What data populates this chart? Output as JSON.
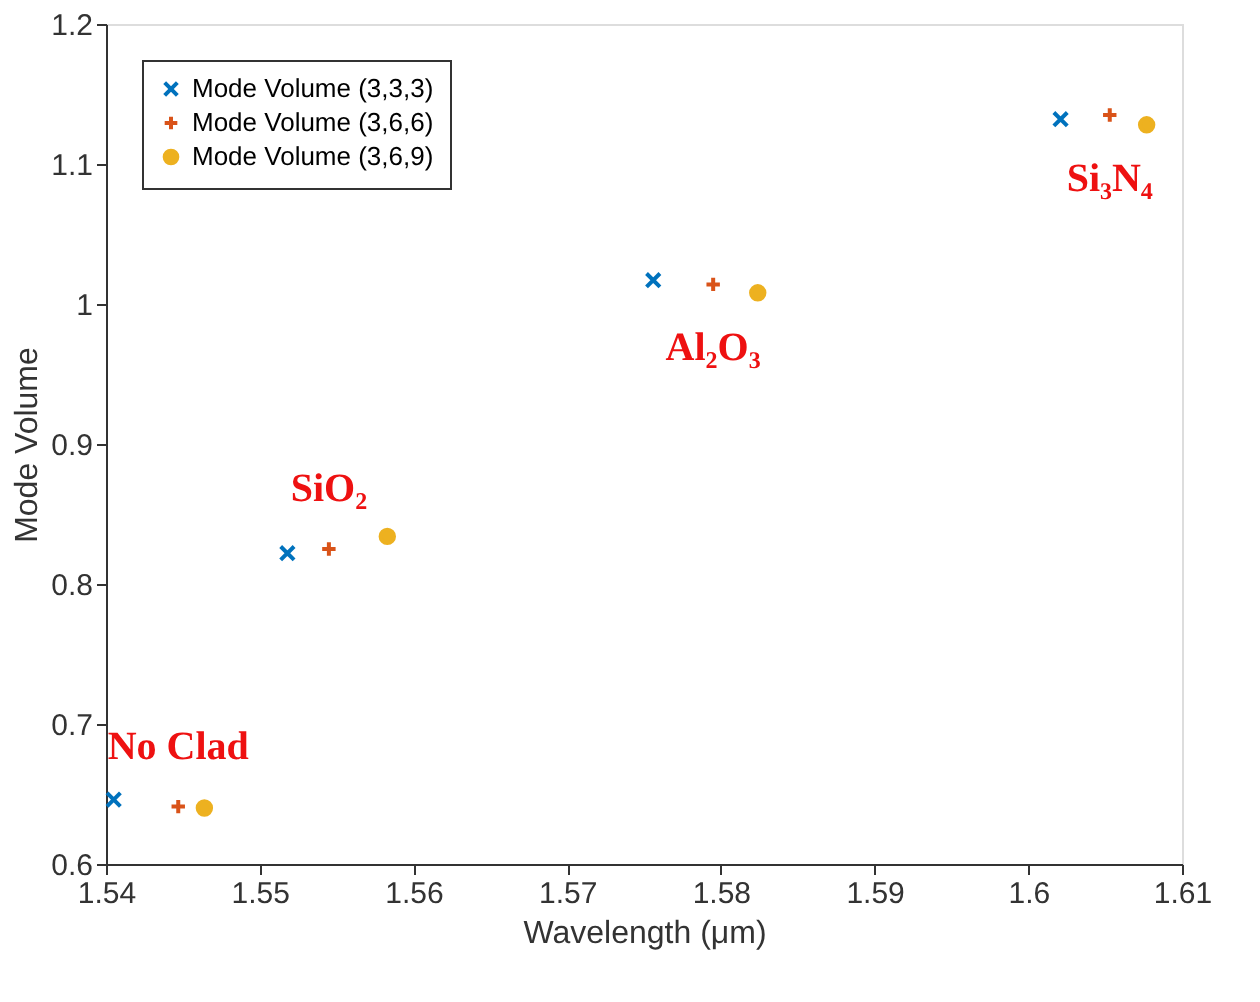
{
  "chart_data": {
    "type": "scatter",
    "xlabel": "Wavelength (μm)",
    "ylabel": "Mode Volume",
    "xlim": [
      1.54,
      1.61
    ],
    "xticks": [
      1.54,
      1.55,
      1.56,
      1.57,
      1.58,
      1.59,
      1.6,
      1.61
    ],
    "ylim": [
      0.6,
      1.2
    ],
    "yticks": [
      0.6,
      0.7,
      0.8,
      0.9,
      1,
      1.1,
      1.2
    ],
    "grid": false,
    "legend": "top left",
    "series": [
      {
        "name": "Mode Volume (3,3,3)",
        "color": "#0072bd",
        "marker": "x",
        "x": [
          1.5405,
          1.5518,
          1.5756,
          1.6021
        ],
        "values": [
          0.646,
          0.822,
          1.017,
          1.132
        ]
      },
      {
        "name": "Mode Volume (3,6,6)",
        "color": "#d95319",
        "marker": "cross",
        "x": [
          1.5447,
          1.5545,
          1.5795,
          1.6053
        ],
        "values": [
          0.641,
          0.825,
          1.014,
          1.135
        ]
      },
      {
        "name": "Mode Volume (3,6,9)",
        "color": "#edb120",
        "marker": "circle",
        "x": [
          1.5464,
          1.5583,
          1.5824,
          1.6077
        ],
        "values": [
          0.64,
          0.834,
          1.008,
          1.128
        ]
      }
    ],
    "annotations": [
      "No Clad",
      "SiO₂",
      "Al₂O₃",
      "Si₃N₄"
    ]
  }
}
